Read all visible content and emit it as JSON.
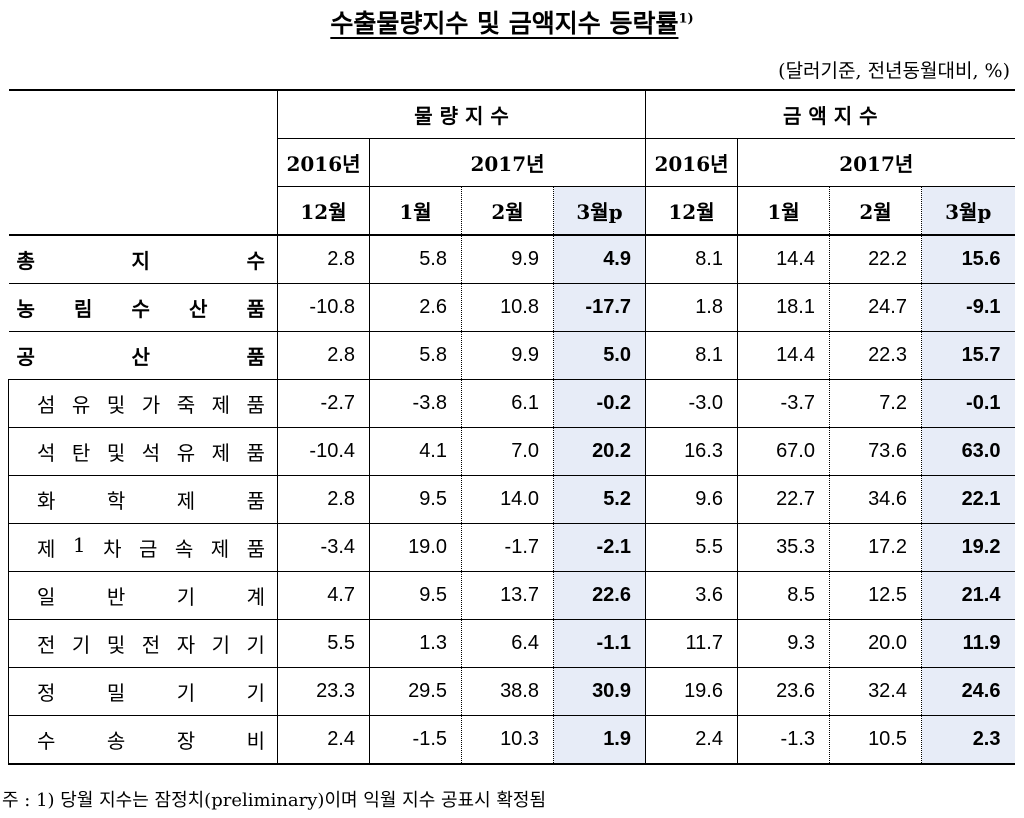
{
  "title": "수출물량지수 및 금액지수 등락률",
  "title_sup": "1)",
  "unit": "(달러기준, 전년동월대비, %)",
  "header": {
    "group_volume": "물 량 지 수",
    "group_value": "금 액 지 수",
    "year_2016": "2016년",
    "year_2017": "2017년",
    "m12": "12월",
    "m1": "1월",
    "m2": "2월",
    "m3": "3월p"
  },
  "rows": [
    {
      "label": "총지수",
      "cells": [
        "2.8",
        "5.8",
        "9.9",
        "4.9",
        "8.1",
        "14.4",
        "22.2",
        "15.6"
      ]
    },
    {
      "label": "농림수산품",
      "cells": [
        "-10.8",
        "2.6",
        "10.8",
        "-17.7",
        "1.8",
        "18.1",
        "24.7",
        "-9.1"
      ]
    },
    {
      "label": "공산품",
      "cells": [
        "2.8",
        "5.8",
        "9.9",
        "5.0",
        "8.1",
        "14.4",
        "22.3",
        "15.7"
      ]
    },
    {
      "label": "섬유및가죽제품",
      "cells": [
        "-2.7",
        "-3.8",
        "6.1",
        "-0.2",
        "-3.0",
        "-3.7",
        "7.2",
        "-0.1"
      ]
    },
    {
      "label": "석탄및석유제품",
      "cells": [
        "-10.4",
        "4.1",
        "7.0",
        "20.2",
        "16.3",
        "67.0",
        "73.6",
        "63.0"
      ]
    },
    {
      "label": "화학제품",
      "cells": [
        "2.8",
        "9.5",
        "14.0",
        "5.2",
        "9.6",
        "22.7",
        "34.6",
        "22.1"
      ]
    },
    {
      "label": "제1차금속제품",
      "cells": [
        "-3.4",
        "19.0",
        "-1.7",
        "-2.1",
        "5.5",
        "35.3",
        "17.2",
        "19.2"
      ]
    },
    {
      "label": "일반기계",
      "cells": [
        "4.7",
        "9.5",
        "13.7",
        "22.6",
        "3.6",
        "8.5",
        "12.5",
        "21.4"
      ]
    },
    {
      "label": "전기및전자기기",
      "cells": [
        "5.5",
        "1.3",
        "6.4",
        "-1.1",
        "11.7",
        "9.3",
        "20.0",
        "11.9"
      ]
    },
    {
      "label": "정밀기기",
      "cells": [
        "23.3",
        "29.5",
        "38.8",
        "30.9",
        "19.6",
        "23.6",
        "32.4",
        "24.6"
      ]
    },
    {
      "label": "수송장비",
      "cells": [
        "2.4",
        "-1.5",
        "10.3",
        "1.9",
        "2.4",
        "-1.3",
        "10.5",
        "2.3"
      ]
    }
  ],
  "note": "주 : 1) 당월 지수는 잠정치(preliminary)이며 익월 지수 공표시 확정됨"
}
